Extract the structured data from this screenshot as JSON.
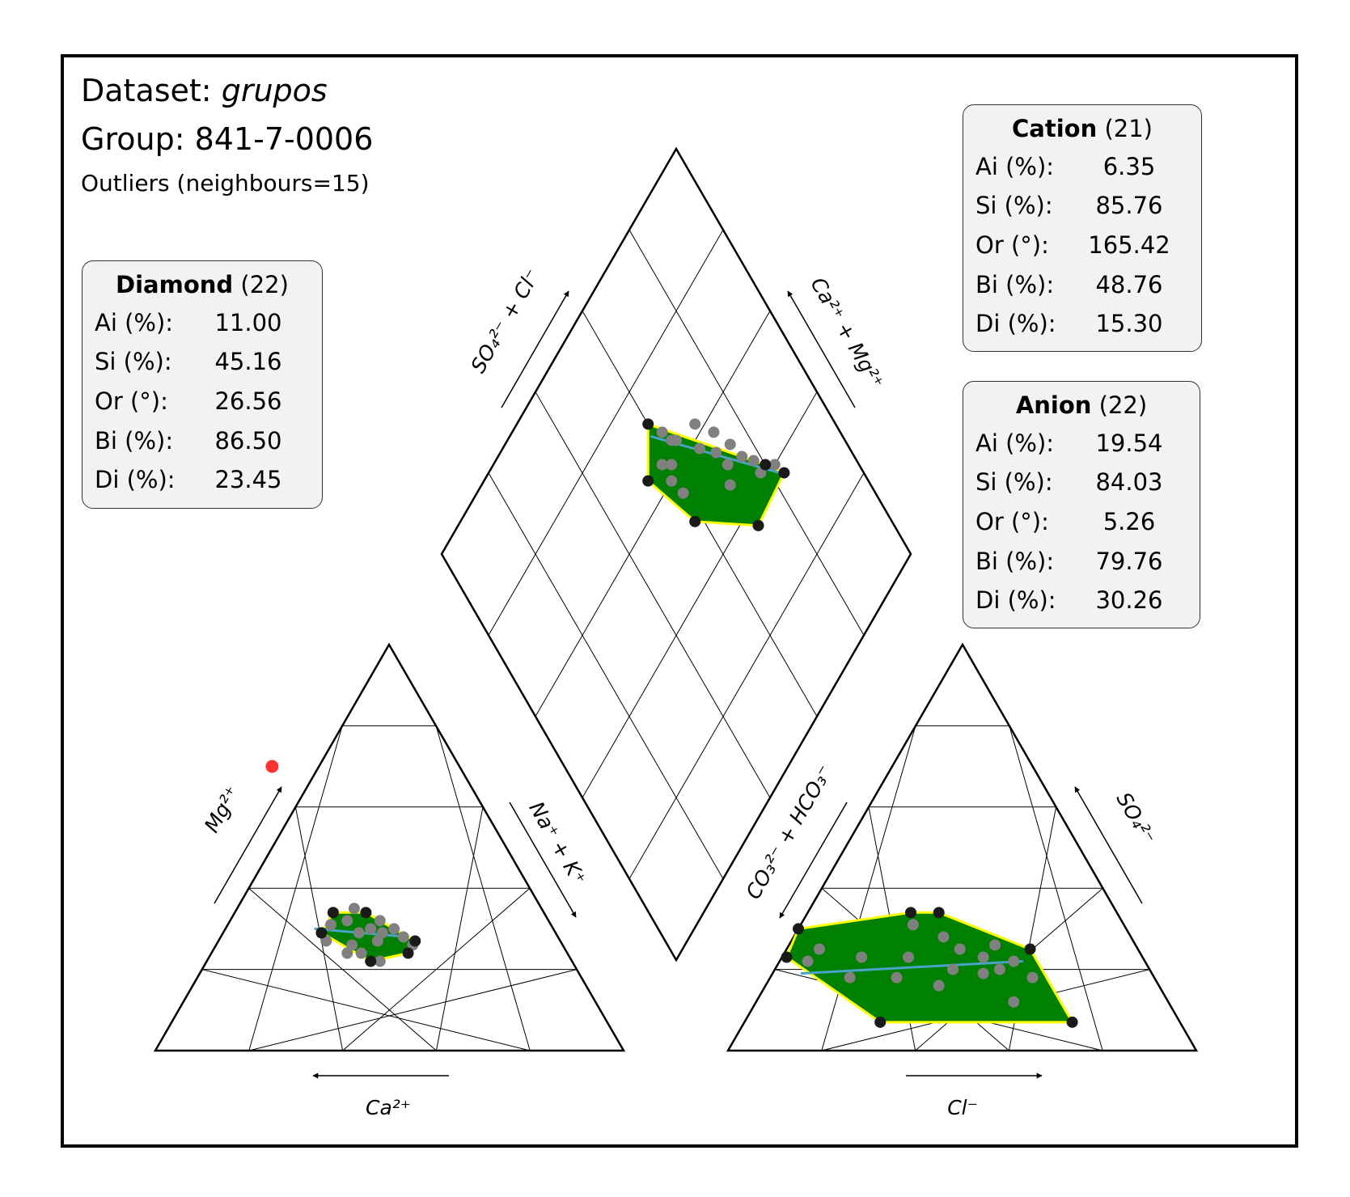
{
  "header": {
    "dataset_label": "Dataset:",
    "dataset_name": "grupos",
    "group_label": "Group: 841-7-0006",
    "outliers_label": "Outliers (neighbours=15)"
  },
  "stats": {
    "diamond": {
      "title": "Diamond",
      "count": "(22)",
      "rows": [
        {
          "label": "Ai (%):",
          "value": "11.00"
        },
        {
          "label": "Si (%):",
          "value": "45.16"
        },
        {
          "label": "Or (°):",
          "value": "26.56"
        },
        {
          "label": "Bi (%):",
          "value": "86.50"
        },
        {
          "label": "Di (%):",
          "value": "23.45"
        }
      ]
    },
    "cation": {
      "title": "Cation",
      "count": "(21)",
      "rows": [
        {
          "label": "Ai (%):",
          "value": "6.35"
        },
        {
          "label": "Si (%):",
          "value": "85.76"
        },
        {
          "label": "Or (°):",
          "value": "165.42"
        },
        {
          "label": "Bi (%):",
          "value": "48.76"
        },
        {
          "label": "Di (%):",
          "value": "15.30"
        }
      ]
    },
    "anion": {
      "title": "Anion",
      "count": "(22)",
      "rows": [
        {
          "label": "Ai (%):",
          "value": "19.54"
        },
        {
          "label": "Si (%):",
          "value": "84.03"
        },
        {
          "label": "Or (°):",
          "value": "5.26"
        },
        {
          "label": "Bi (%):",
          "value": "79.76"
        },
        {
          "label": "Di (%):",
          "value": "30.26"
        }
      ]
    }
  },
  "axis_labels": {
    "ca": "Ca²⁺",
    "mg": "Mg²⁺",
    "na_k": "Na⁺ + K⁺",
    "cl": "Cl⁻",
    "so4": "SO₄²⁻",
    "co3_hco3": "CO₃²⁻ + HCO₃⁻",
    "so4_cl": "SO₄²⁻ + Cl⁻",
    "ca_mg": "Ca²⁺ + Mg²⁺"
  },
  "colors": {
    "hull_fill": "#008000",
    "hull_edge": "#ffff00",
    "trend_line": "#4aa3c7",
    "point": "#808080",
    "hull_vertex": "#1a1a1a",
    "outlier": "#ff3333",
    "outliers_text": "#ff0000"
  },
  "chart_data": {
    "type": "piper",
    "grid_step_percent": 20,
    "cation": {
      "units": "percent (Ca, Mg, Na+K)",
      "points": [
        [
          40,
          35,
          25
        ],
        [
          45,
          34,
          21
        ],
        [
          38,
          34,
          28
        ],
        [
          43,
          32,
          25
        ],
        [
          47,
          31,
          22
        ],
        [
          36,
          32,
          32
        ],
        [
          50,
          27,
          23
        ],
        [
          34,
          30,
          36
        ],
        [
          39,
          30,
          31
        ],
        [
          37,
          29,
          34
        ],
        [
          42,
          29,
          29
        ],
        [
          33,
          28,
          39
        ],
        [
          47,
          24,
          29
        ],
        [
          44,
          24,
          32
        ],
        [
          32,
          26,
          42
        ],
        [
          41,
          22,
          37
        ],
        [
          39,
          27,
          34
        ],
        [
          45,
          26,
          29
        ]
      ],
      "hull": [
        [
          50,
          29,
          21
        ],
        [
          45,
          34,
          21
        ],
        [
          38,
          34,
          28
        ],
        [
          31,
          27,
          42
        ],
        [
          34,
          24,
          42
        ],
        [
          43,
          22,
          35
        ]
      ],
      "outliers": [
        [
          40,
          70,
          -10
        ]
      ],
      "trend": [
        [
          51,
          30,
          19
        ],
        [
          32,
          28,
          40
        ]
      ]
    },
    "anion": {
      "units": "percent (CO3+HCO3, SO4, Cl)",
      "points": [
        [
          72,
          22,
          6
        ],
        [
          68,
          25,
          7
        ],
        [
          65,
          18,
          17
        ],
        [
          60,
          23,
          17
        ],
        [
          50,
          23,
          27
        ],
        [
          55,
          18,
          27
        ],
        [
          45,
          31,
          24
        ],
        [
          40,
          28,
          32
        ],
        [
          38,
          25,
          37
        ],
        [
          34,
          23,
          43
        ],
        [
          36,
          19,
          45
        ],
        [
          30,
          26,
          44
        ],
        [
          32,
          20,
          48
        ],
        [
          28,
          22,
          50
        ],
        [
          42,
          20,
          38
        ],
        [
          47,
          16,
          37
        ],
        [
          33,
          12,
          55
        ],
        [
          26,
          18,
          56
        ]
      ],
      "hull": [
        [
          76,
          23,
          1
        ],
        [
          70,
          30,
          0
        ],
        [
          44,
          34,
          22
        ],
        [
          38,
          34,
          28
        ],
        [
          23,
          25,
          52
        ],
        [
          23,
          7,
          70
        ],
        [
          64,
          7,
          29
        ]
      ],
      "trend": [
        [
          75,
          19,
          6
        ],
        [
          26,
          22,
          52
        ]
      ]
    },
    "diamond": {
      "units": "percent (SO4+Cl, Ca+Mg)",
      "points": [
        [
          40,
          82
        ],
        [
          42,
          78
        ],
        [
          45,
          78
        ],
        [
          48,
          76
        ],
        [
          52,
          75
        ],
        [
          50,
          72
        ],
        [
          54,
          71
        ],
        [
          58,
          68
        ],
        [
          62,
          70
        ],
        [
          64,
          64
        ],
        [
          65,
          63
        ],
        [
          62,
          60
        ],
        [
          60,
          58
        ],
        [
          56,
          59
        ],
        [
          68,
          62
        ],
        [
          64,
          58
        ],
        [
          47,
          70
        ],
        [
          57,
          73
        ]
      ],
      "hull": [
        [
          37,
          83
        ],
        [
          42,
          80
        ],
        [
          72,
          60
        ],
        [
          65,
          53
        ],
        [
          50,
          58
        ],
        [
          36,
          71
        ]
      ],
      "trend": [
        [
          38,
          82
        ],
        [
          70,
          59
        ]
      ]
    }
  }
}
